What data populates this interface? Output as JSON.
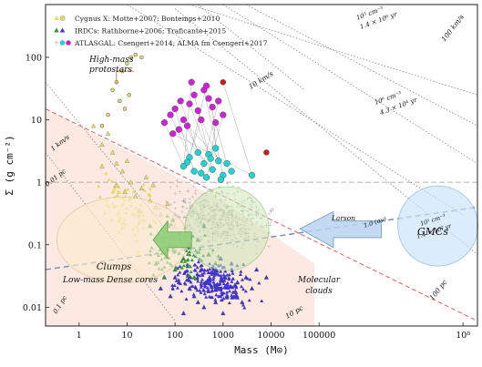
{
  "chart_data": {
    "type": "scatter",
    "title": "",
    "xlabel": "Mass (M⊙)",
    "ylabel": "Σ (g cm⁻²)",
    "xscale": "log",
    "yscale": "log",
    "xlim": [
      0.2,
      200000000
    ],
    "ylim": [
      0.005,
      700
    ],
    "x_ticks": [
      {
        "value": 1,
        "label": "1"
      },
      {
        "value": 10,
        "label": "10"
      },
      {
        "value": 100,
        "label": "100"
      },
      {
        "value": 1000,
        "label": "1000"
      },
      {
        "value": 10000,
        "label": "10000"
      },
      {
        "value": 100000,
        "label": "100000"
      },
      {
        "value": 100000000,
        "label": "10⁸"
      }
    ],
    "y_ticks": [
      {
        "value": 0.01,
        "label": "0.01"
      },
      {
        "value": 0.1,
        "label": "0.1"
      },
      {
        "value": 1,
        "label": "1"
      },
      {
        "value": 10,
        "label": "10"
      },
      {
        "value": 100,
        "label": "100"
      }
    ],
    "legend": {
      "placement": "top-left",
      "entries": [
        {
          "text": "Cygnus X: Motte+2007; Bontemps+2010",
          "color": "#e2dc6a",
          "marker": "triangle+circle"
        },
        {
          "text": "IRDCs: Rathborne+2006; Traficante+2015",
          "color": "#2e9a3a",
          "marker2": "#3d33cc",
          "marker": "triangle"
        },
        {
          "text": "ATLASGAL: Csengeri+2014; ALMA fm Csengeri+2017",
          "color": "#b0b0b0",
          "marker2": "#20d4d4",
          "marker3": "#d020d8",
          "marker": "cross+circle"
        }
      ]
    },
    "series": [
      {
        "name": "Cygnus X",
        "color": "#e2dc6a",
        "marker": "triangle",
        "points": [
          [
            2,
            8
          ],
          [
            3,
            4
          ],
          [
            4,
            6
          ],
          [
            5,
            3
          ],
          [
            6,
            2
          ],
          [
            3,
            1.8
          ],
          [
            8,
            1.5
          ],
          [
            12,
            1
          ],
          [
            20,
            0.8
          ],
          [
            15,
            0.6
          ],
          [
            30,
            0.5
          ],
          [
            40,
            0.4
          ],
          [
            6,
            0.9
          ],
          [
            10,
            2.2
          ],
          [
            25,
            1.2
          ],
          [
            50,
            0.3
          ],
          [
            70,
            0.45
          ],
          [
            18,
            0.35
          ],
          [
            9,
            0.7
          ],
          [
            35,
            0.9
          ]
        ]
      },
      {
        "name": "Cygnus X protostars",
        "color": "#e2dc6a",
        "marker": "circle",
        "points": [
          [
            5,
            30
          ],
          [
            6,
            40
          ],
          [
            8,
            60
          ],
          [
            10,
            80
          ],
          [
            12,
            100
          ],
          [
            15,
            110
          ],
          [
            20,
            100
          ],
          [
            7,
            20
          ],
          [
            4,
            12
          ],
          [
            3,
            8
          ],
          [
            9,
            15
          ],
          [
            11,
            25
          ]
        ]
      },
      {
        "name": "IRDCs Rathborne",
        "color": "#2e9a3a",
        "marker": "triangle",
        "points": [
          [
            40,
            0.05
          ],
          [
            60,
            0.08
          ],
          [
            80,
            0.1
          ],
          [
            100,
            0.04
          ],
          [
            150,
            0.06
          ],
          [
            200,
            0.09
          ],
          [
            300,
            0.12
          ],
          [
            500,
            0.07
          ],
          [
            700,
            0.05
          ],
          [
            30,
            0.2
          ],
          [
            120,
            0.15
          ],
          [
            250,
            0.03
          ],
          [
            400,
            0.2
          ],
          [
            60,
            0.03
          ],
          [
            90,
            0.25
          ]
        ]
      },
      {
        "name": "IRDCs Traficante",
        "color": "#3d33cc",
        "marker": "triangle",
        "points": [
          [
            50,
            0.02
          ],
          [
            80,
            0.015
          ],
          [
            120,
            0.025
          ],
          [
            200,
            0.02
          ],
          [
            300,
            0.012
          ],
          [
            500,
            0.018
          ],
          [
            800,
            0.02
          ],
          [
            1200,
            0.015
          ],
          [
            2000,
            0.025
          ],
          [
            3000,
            0.03
          ],
          [
            5000,
            0.04
          ],
          [
            8000,
            0.03
          ],
          [
            150,
            0.008
          ],
          [
            400,
            0.01
          ],
          [
            1000,
            0.008
          ],
          [
            2500,
            0.012
          ],
          [
            100,
            0.03
          ],
          [
            600,
            0.035
          ],
          [
            1500,
            0.05
          ],
          [
            4000,
            0.02
          ],
          [
            250,
            0.015
          ],
          [
            700,
            0.012
          ],
          [
            1800,
            0.018
          ],
          [
            350,
            0.04
          ],
          [
            900,
            0.06
          ]
        ]
      },
      {
        "name": "ATLASGAL",
        "color": "#a0a0a0",
        "marker": "cross",
        "points": [
          [
            200,
            0.2
          ],
          [
            300,
            0.3
          ],
          [
            500,
            0.25
          ],
          [
            800,
            0.2
          ],
          [
            1000,
            0.15
          ],
          [
            1500,
            0.3
          ],
          [
            2000,
            0.2
          ],
          [
            3000,
            0.15
          ],
          [
            5000,
            0.3
          ],
          [
            8000,
            0.2
          ],
          [
            400,
            0.4
          ],
          [
            600,
            0.15
          ],
          [
            1200,
            0.4
          ],
          [
            2500,
            0.35
          ],
          [
            150,
            0.5
          ],
          [
            100,
            0.3
          ],
          [
            700,
            0.6
          ],
          [
            4000,
            0.5
          ],
          [
            10000,
            0.35
          ],
          [
            350,
            0.12
          ]
        ]
      },
      {
        "name": "ALMA cores",
        "color": "#20d4d4",
        "marker": "circle",
        "points": [
          [
            150,
            1.8
          ],
          [
            200,
            2.5
          ],
          [
            250,
            1.5
          ],
          [
            300,
            3
          ],
          [
            400,
            2
          ],
          [
            500,
            2.8
          ],
          [
            600,
            1.6
          ],
          [
            800,
            2.2
          ],
          [
            1000,
            1.3
          ],
          [
            1200,
            2
          ],
          [
            700,
            3.5
          ],
          [
            350,
            1.4
          ],
          [
            450,
            1.2
          ],
          [
            900,
            1.1
          ],
          [
            1500,
            1.5
          ],
          [
            180,
            2.1
          ],
          [
            550,
            2.4
          ],
          [
            4000,
            1.3
          ]
        ]
      },
      {
        "name": "ATLASGAL clumps",
        "color": "#d020d8",
        "marker": "circle",
        "points": [
          [
            60,
            9
          ],
          [
            80,
            12
          ],
          [
            100,
            15
          ],
          [
            130,
            20
          ],
          [
            150,
            10
          ],
          [
            200,
            18
          ],
          [
            250,
            25
          ],
          [
            300,
            14
          ],
          [
            400,
            30
          ],
          [
            500,
            22
          ],
          [
            600,
            16
          ],
          [
            800,
            20
          ],
          [
            1000,
            12
          ],
          [
            120,
            7
          ],
          [
            180,
            8
          ],
          [
            350,
            10
          ],
          [
            700,
            9
          ],
          [
            90,
            6
          ],
          [
            220,
            40
          ],
          [
            450,
            35
          ]
        ]
      },
      {
        "name": "Massive clumps",
        "color": "#cc1a12",
        "marker": "circle",
        "points": [
          [
            1000,
            40
          ],
          [
            8000,
            3
          ]
        ]
      }
    ],
    "annotations": [
      {
        "text": "High-mass",
        "color": "#e07a50"
      },
      {
        "text": "protostars",
        "color": "#e07a50"
      },
      {
        "text": "Clumps",
        "color": "#b46a3a"
      },
      {
        "text": "Low-mass Dense cores",
        "color": "#b46a3a"
      },
      {
        "text": "Molecular",
        "color": "#2a9a2a"
      },
      {
        "text": "clouds",
        "color": "#2a9a2a"
      },
      {
        "text": "GMCs",
        "color": "#2a5ec8"
      },
      {
        "text": "Larson",
        "color": "#2a5ec8"
      },
      {
        "text": "1 km/s",
        "color": "#222"
      },
      {
        "text": "10 km/s",
        "color": "#222"
      },
      {
        "text": "100 km/s",
        "color": "#222"
      },
      {
        "text": "0.01 pc",
        "color": "#222"
      },
      {
        "text": "0.1 pc",
        "color": "#222"
      },
      {
        "text": "10 pc",
        "color": "#222"
      },
      {
        "text": "100 pc",
        "color": "#222"
      },
      {
        "text": "10³ cm⁻³",
        "color": "#222"
      },
      {
        "text": "1.4 × 10⁶ yr",
        "color": "#222"
      },
      {
        "text": "10⁶ cm⁻³",
        "color": "#222"
      },
      {
        "text": "4.3 × 10⁴ yr",
        "color": "#222"
      },
      {
        "text": "10¹ cm⁻³",
        "color": "#222"
      },
      {
        "text": "1.4 × 10⁷ yr",
        "color": "#222"
      },
      {
        "text": "1.0 (αv)",
        "color": "#222"
      }
    ]
  }
}
